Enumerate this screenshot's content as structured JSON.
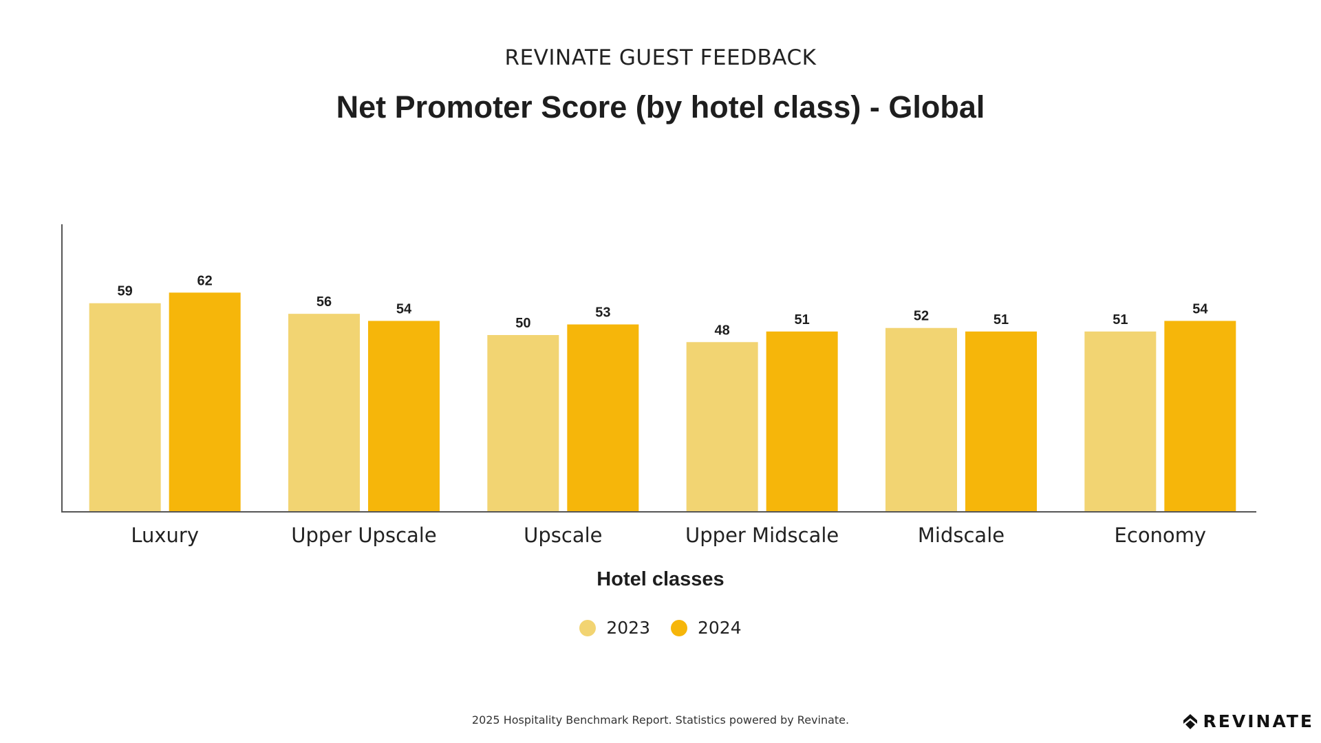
{
  "header": {
    "kicker": "REVINATE GUEST FEEDBACK",
    "title": "Net Promoter Score (by hotel class) - Global"
  },
  "chart_data": {
    "type": "bar",
    "categories": [
      "Luxury",
      "Upper Upscale",
      "Upscale",
      "Upper Midscale",
      "Midscale",
      "Economy"
    ],
    "series": [
      {
        "name": "2023",
        "values": [
          59,
          56,
          50,
          48,
          52,
          51
        ],
        "color": "#F2D472"
      },
      {
        "name": "2024",
        "values": [
          62,
          54,
          53,
          51,
          51,
          54
        ],
        "color": "#F6B60A"
      }
    ],
    "title": "Net Promoter Score (by hotel class) - Global",
    "xlabel": "Hotel classes",
    "ylabel": "",
    "ylim": [
      0,
      80
    ],
    "grid": false,
    "legend": "bottom-center",
    "data_labels": true
  },
  "footer": {
    "note": "2025 Hospitality Benchmark Report. Statistics powered by Revinate.",
    "logo_text": "REVINATE",
    "logo_icon": "revinate-logo-icon"
  }
}
